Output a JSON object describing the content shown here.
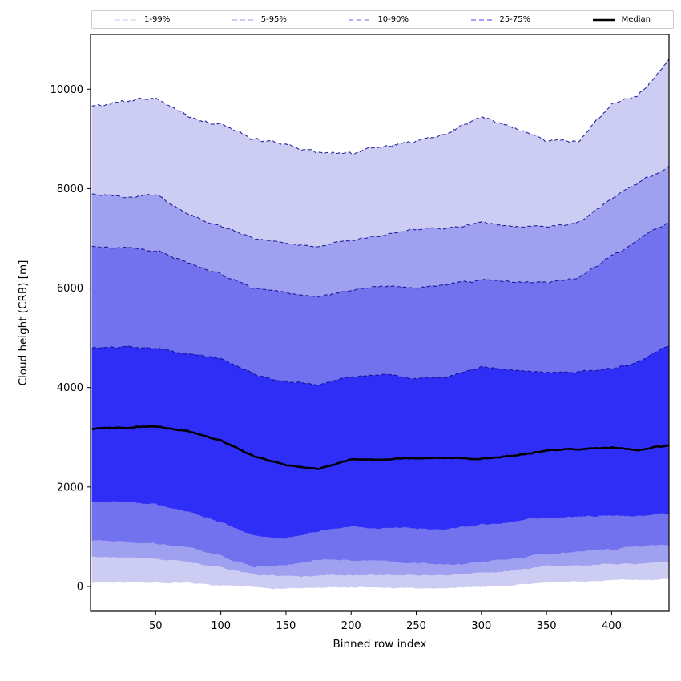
{
  "chart_data": {
    "type": "area",
    "title": "",
    "xlabel": "Binned row index",
    "ylabel": "Cloud height (CRB) [m]",
    "xlim": [
      0,
      444
    ],
    "ylim": [
      -500,
      11100
    ],
    "xticks": [
      50,
      100,
      150,
      200,
      250,
      300,
      350,
      400
    ],
    "yticks": [
      0,
      2000,
      4000,
      6000,
      8000,
      10000
    ],
    "grid": false,
    "legend_position": "top-horizontal",
    "x": [
      1,
      25,
      50,
      75,
      100,
      125,
      150,
      175,
      200,
      225,
      250,
      275,
      300,
      325,
      350,
      375,
      400,
      420,
      444
    ],
    "percentiles": {
      "p1": [
        80,
        85,
        80,
        60,
        20,
        -20,
        -40,
        -30,
        -20,
        -30,
        -40,
        -30,
        0,
        20,
        80,
        100,
        120,
        130,
        150
      ],
      "p5": [
        600,
        580,
        560,
        500,
        380,
        240,
        200,
        220,
        230,
        230,
        220,
        230,
        280,
        320,
        400,
        420,
        450,
        460,
        485
      ],
      "p10": [
        920,
        900,
        870,
        780,
        620,
        390,
        430,
        540,
        540,
        510,
        470,
        440,
        500,
        560,
        660,
        700,
        760,
        790,
        840
      ],
      "p25": [
        1710,
        1700,
        1650,
        1500,
        1300,
        1020,
        970,
        1100,
        1210,
        1180,
        1160,
        1150,
        1250,
        1300,
        1390,
        1400,
        1420,
        1420,
        1460
      ],
      "median": [
        3170,
        3200,
        3220,
        3120,
        2930,
        2620,
        2440,
        2360,
        2550,
        2560,
        2580,
        2580,
        2560,
        2620,
        2740,
        2760,
        2790,
        2750,
        2830
      ],
      "p75": [
        4790,
        4820,
        4780,
        4680,
        4600,
        4280,
        4120,
        4060,
        4200,
        4270,
        4200,
        4220,
        4420,
        4350,
        4300,
        4320,
        4380,
        4500,
        4850
      ],
      "p90": [
        6840,
        6800,
        6760,
        6500,
        6280,
        6010,
        5890,
        5830,
        5950,
        6050,
        6000,
        6080,
        6160,
        6130,
        6100,
        6220,
        6650,
        6950,
        7330
      ],
      "p95": [
        7900,
        7850,
        7860,
        7480,
        7250,
        7000,
        6900,
        6840,
        6960,
        7080,
        7180,
        7200,
        7320,
        7210,
        7240,
        7340,
        7800,
        8100,
        8460
      ],
      "p99": [
        9680,
        9760,
        9820,
        9450,
        9310,
        8980,
        8890,
        8720,
        8700,
        8850,
        8950,
        9120,
        9450,
        9230,
        8940,
        8950,
        9710,
        9850,
        10600
      ]
    },
    "bands": [
      {
        "label": "1-99%",
        "lower": "p1",
        "upper": "p99",
        "fill": "#cdcdf4",
        "legend_color": "#d9d9f4"
      },
      {
        "label": "5-95%",
        "lower": "p5",
        "upper": "p95",
        "fill": "#a0a0f0",
        "legend_color": "#b9b9f0"
      },
      {
        "label": "10-90%",
        "lower": "p10",
        "upper": "p90",
        "fill": "#7272ee",
        "legend_color": "#9c9cf0"
      },
      {
        "label": "25-75%",
        "lower": "p25",
        "upper": "p75",
        "fill": "#2e2ef7",
        "legend_color": "#8181f1"
      }
    ],
    "median_line": {
      "label": "Median",
      "color": "#000000"
    },
    "edge_color": "#0b0b8f"
  },
  "legend": {
    "items": [
      "1-99%",
      "5-95%",
      "10-90%",
      "25-75%",
      "Median"
    ]
  }
}
